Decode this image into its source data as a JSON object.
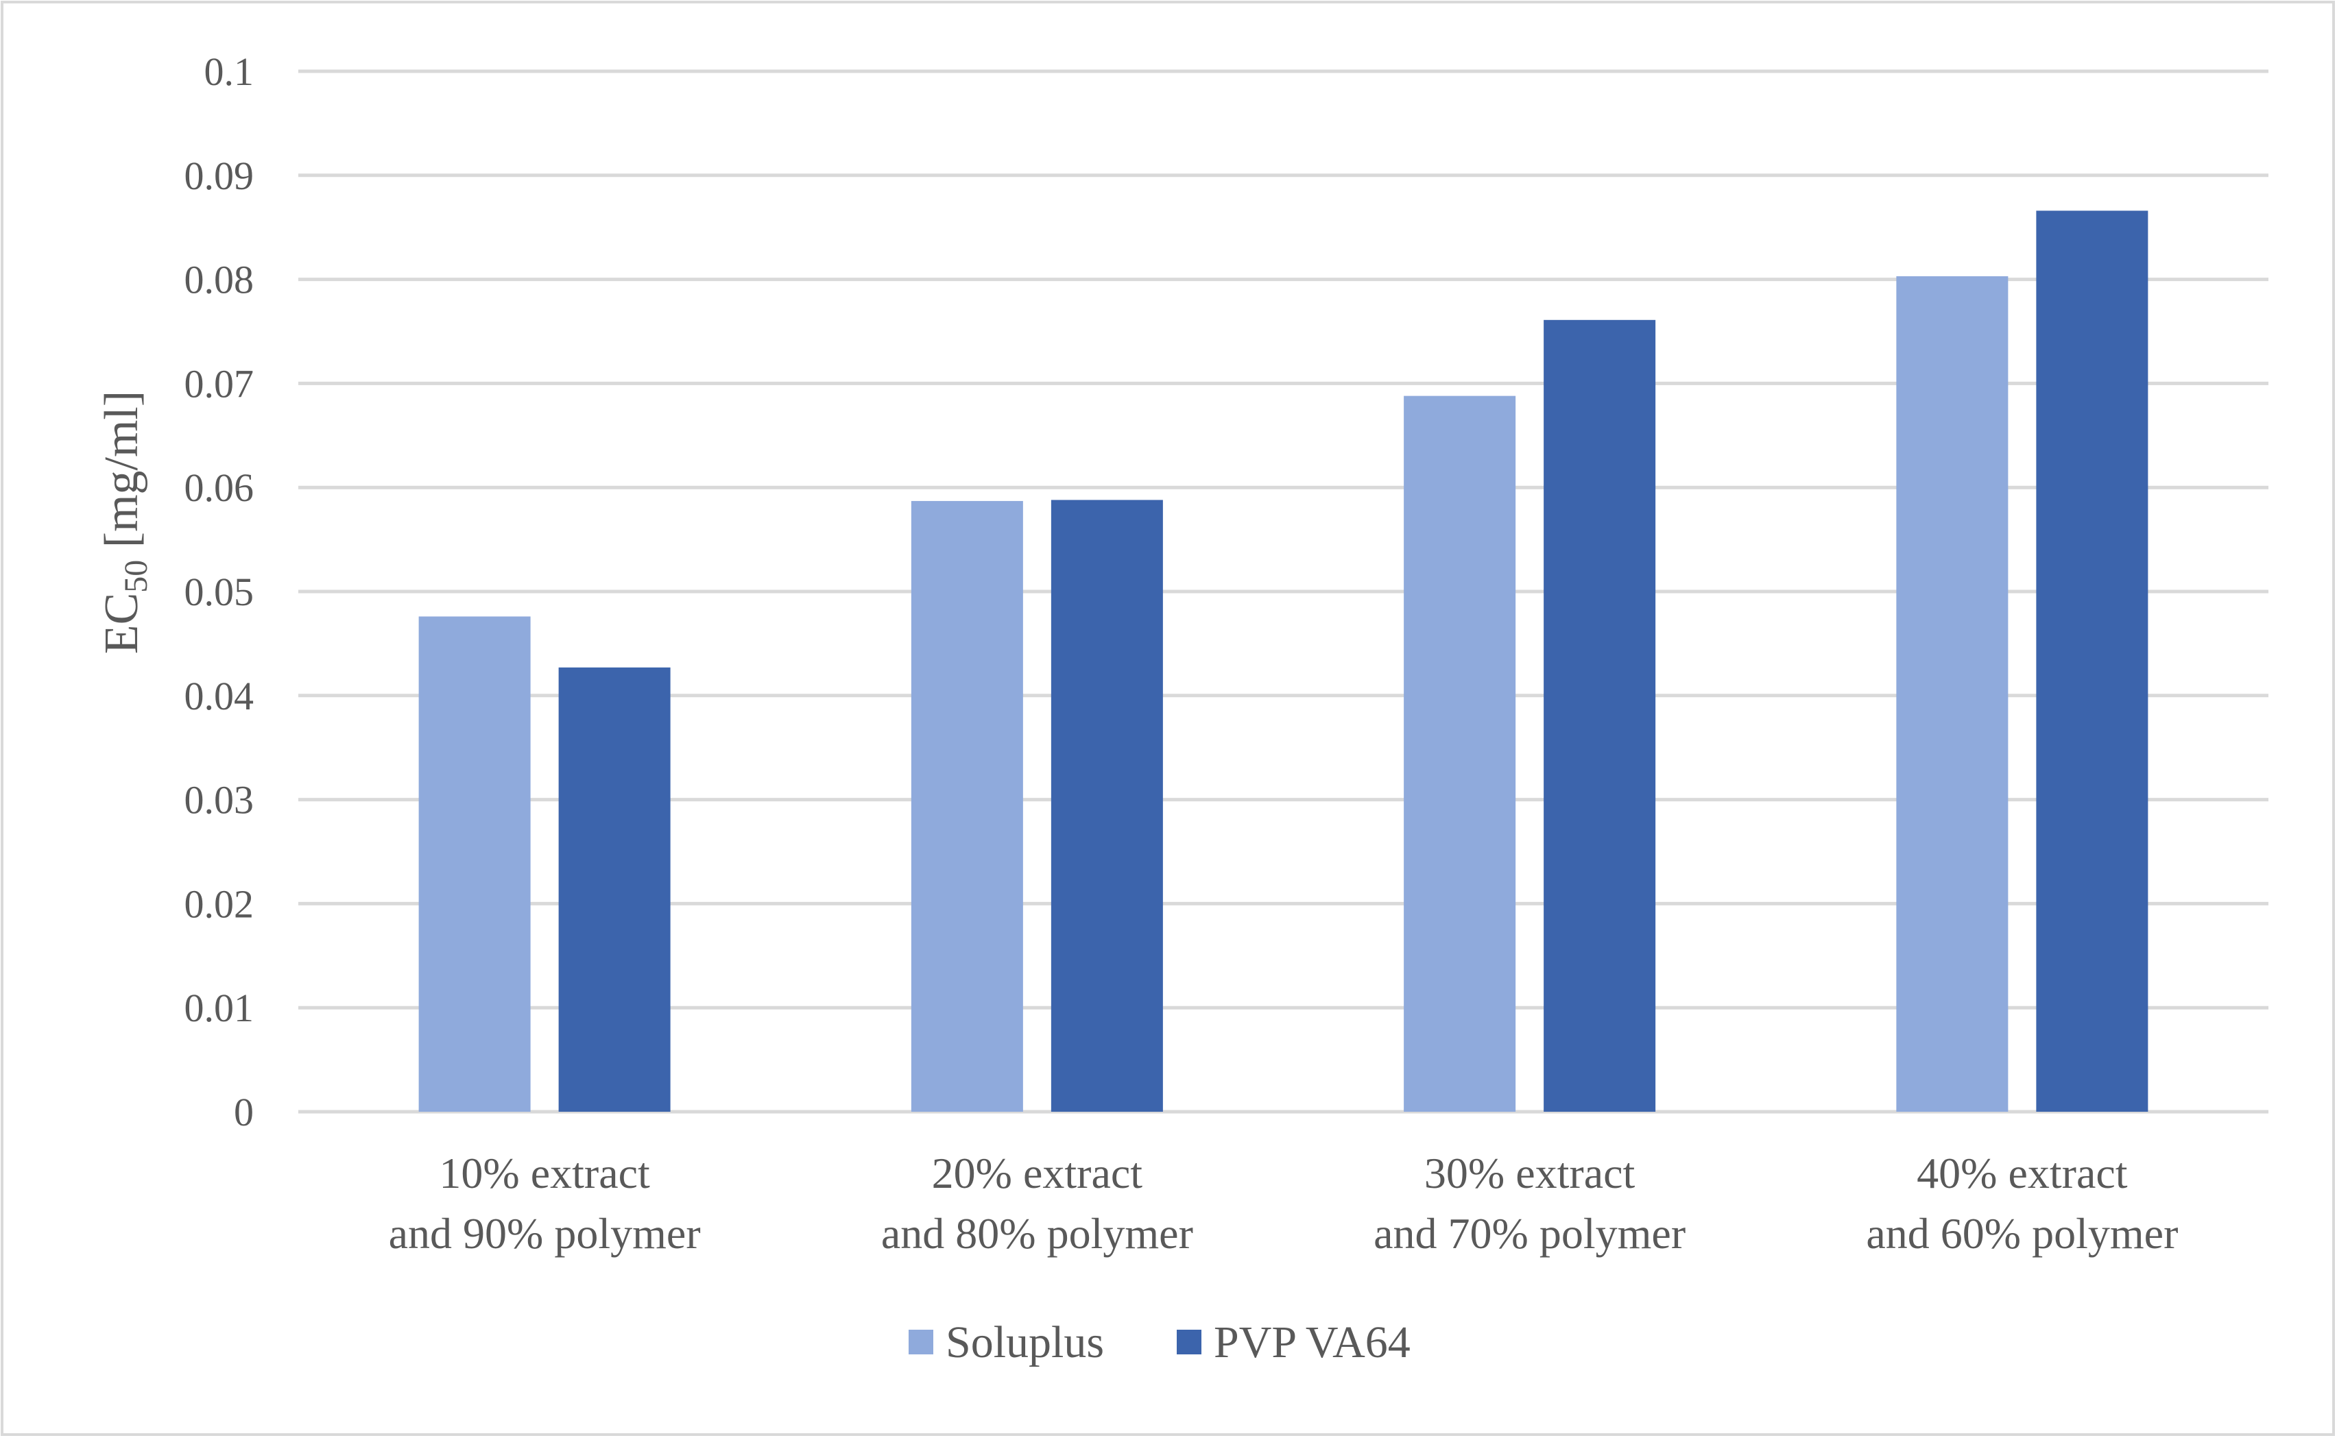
{
  "chart_data": {
    "type": "bar",
    "title": "",
    "xlabel": "",
    "ylabel": "EC50 [mg/ml]",
    "ylabel_parts": {
      "main": "EC",
      "subscript": "50",
      "unit": "[mg/ml]"
    },
    "ylim": [
      0,
      0.1
    ],
    "yticks": [
      "0",
      "0.01",
      "0.02",
      "0.03",
      "0.04",
      "0.05",
      "0.06",
      "0.07",
      "0.08",
      "0.09",
      "0.1"
    ],
    "grid": true,
    "legend_position": "bottom",
    "categories": [
      [
        "10% extract",
        "and 90% polymer"
      ],
      [
        "20% extract",
        "and 80% polymer"
      ],
      [
        "30% extract",
        "and 70% polymer"
      ],
      [
        "40% extract",
        "and 60% polymer"
      ]
    ],
    "series": [
      {
        "name": "Soluplus",
        "color": "#8faadc",
        "values": [
          0.0476,
          0.0587,
          0.0688,
          0.0803
        ]
      },
      {
        "name": "PVP VA64",
        "color": "#3c64ac",
        "values": [
          0.0427,
          0.0588,
          0.0761,
          0.0866
        ]
      }
    ]
  }
}
